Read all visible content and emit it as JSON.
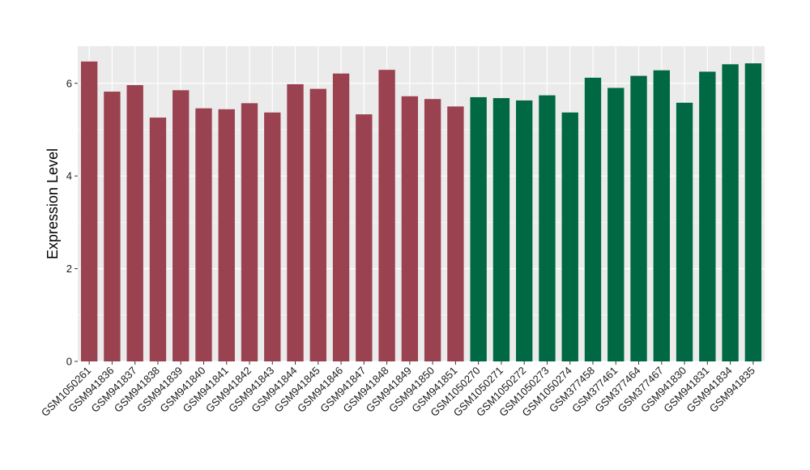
{
  "chart_data": {
    "type": "bar",
    "ylabel": "Expression Level",
    "xlabel": "",
    "ylim": [
      0,
      6.8
    ],
    "y_ticks": [
      0,
      2,
      4,
      6
    ],
    "grid": true,
    "panel_background": "#EBEBEB",
    "gridline_color": "#FFFFFF",
    "categories": [
      "GSM1050261",
      "GSM941836",
      "GSM941837",
      "GSM941838",
      "GSM941839",
      "GSM941840",
      "GSM941841",
      "GSM941842",
      "GSM941843",
      "GSM941844",
      "GSM941845",
      "GSM941846",
      "GSM941847",
      "GSM941848",
      "GSM941849",
      "GSM941850",
      "GSM941851",
      "GSM1050270",
      "GSM1050271",
      "GSM1050272",
      "GSM1050273",
      "GSM1050274",
      "GSM377458",
      "GSM377461",
      "GSM377464",
      "GSM377467",
      "GSM941830",
      "GSM941831",
      "GSM941834",
      "GSM941835"
    ],
    "values": [
      6.47,
      5.82,
      5.96,
      5.26,
      5.85,
      5.46,
      5.44,
      5.57,
      5.37,
      5.98,
      5.88,
      6.21,
      5.33,
      6.29,
      5.72,
      5.66,
      5.5,
      5.7,
      5.68,
      5.63,
      5.74,
      5.37,
      6.12,
      5.9,
      6.16,
      6.28,
      5.58,
      6.25,
      6.41,
      6.43
    ],
    "bar_colors": [
      "#9B4250",
      "#9B4250",
      "#9B4250",
      "#9B4250",
      "#9B4250",
      "#9B4250",
      "#9B4250",
      "#9B4250",
      "#9B4250",
      "#9B4250",
      "#9B4250",
      "#9B4250",
      "#9B4250",
      "#9B4250",
      "#9B4250",
      "#9B4250",
      "#9B4250",
      "#006843",
      "#006843",
      "#006843",
      "#006843",
      "#006843",
      "#006843",
      "#006843",
      "#006843",
      "#006843",
      "#006843",
      "#006843",
      "#006843",
      "#006843"
    ]
  }
}
